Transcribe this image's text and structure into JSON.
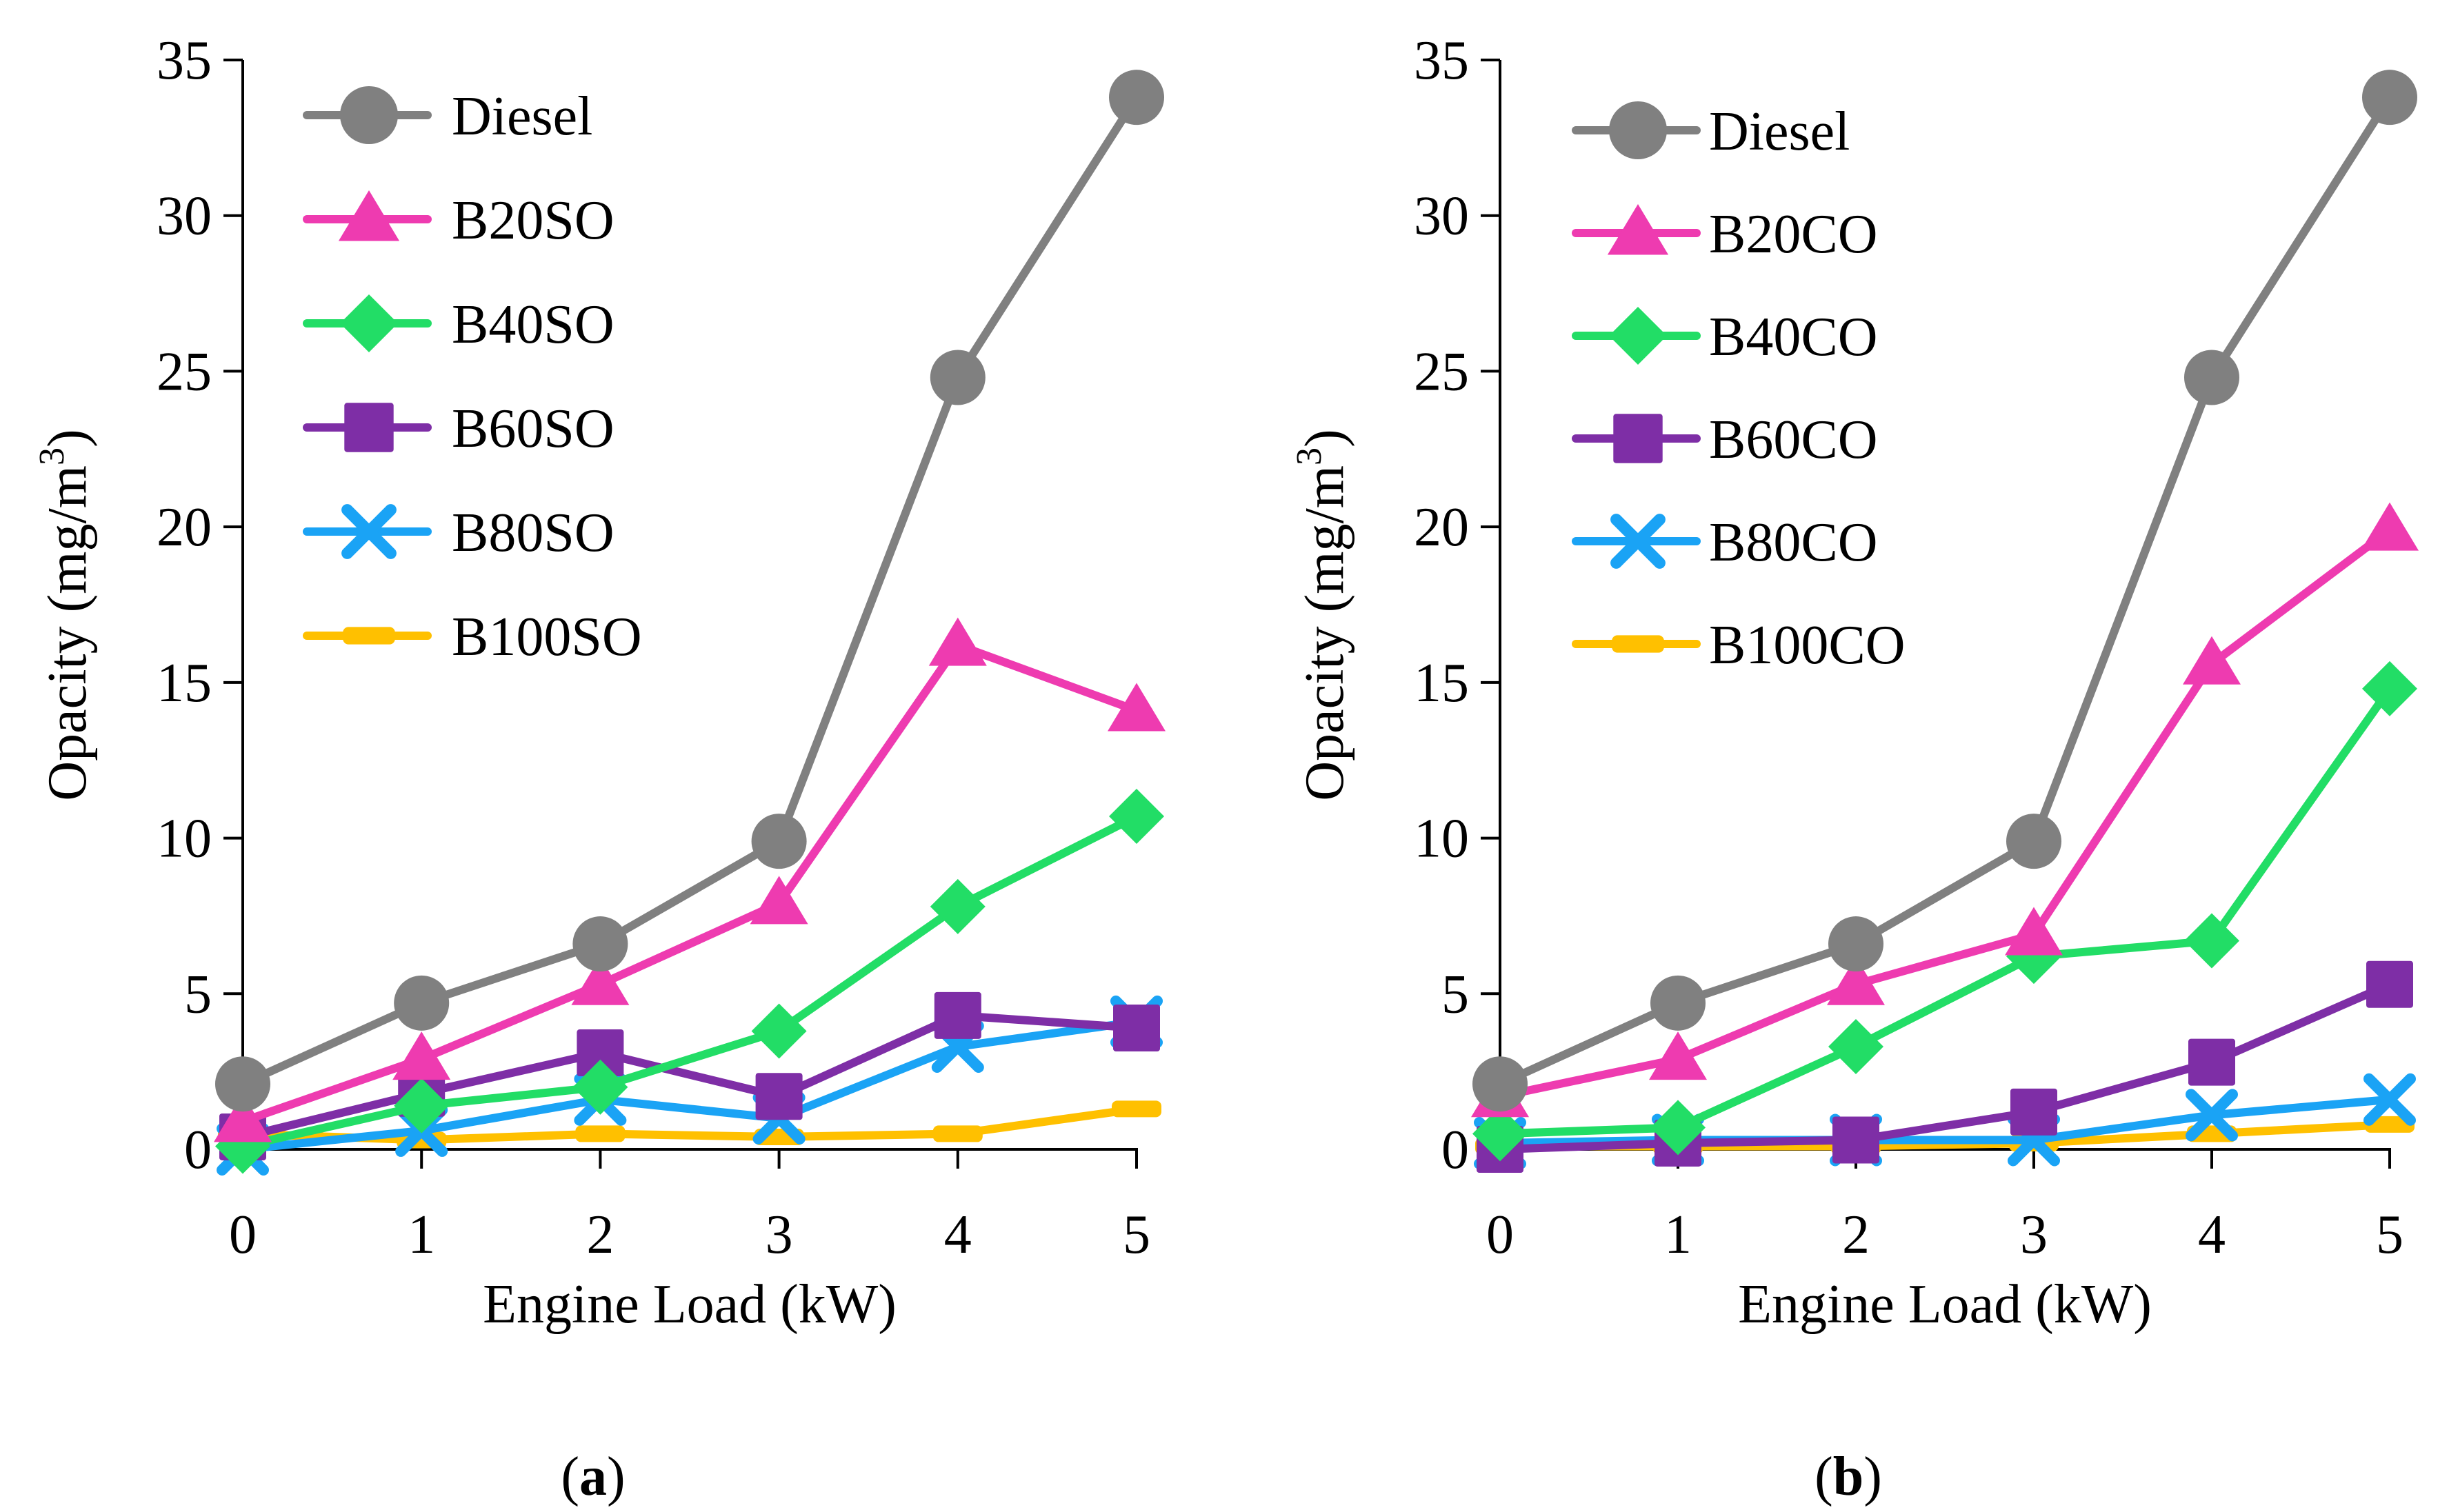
{
  "chart_data": [
    {
      "type": "line",
      "panel": "a",
      "caption": "a",
      "xlabel": "Engine Load (kW)",
      "ylabel": "Opacity (mg/m",
      "ylabel_superscript": "3",
      "ylabel_close": ")",
      "x": [
        0,
        1,
        2,
        3,
        4,
        5
      ],
      "xlim": [
        0,
        5
      ],
      "ylim": [
        0,
        35
      ],
      "yticks": [
        0,
        5,
        10,
        15,
        20,
        25,
        30,
        35
      ],
      "xticks": [
        0,
        1,
        2,
        3,
        4,
        5
      ],
      "legend_position": "top-left",
      "series": [
        {
          "name": "Diesel",
          "color": "#808080",
          "marker": "circle",
          "values": [
            2.1,
            4.7,
            6.6,
            9.9,
            24.8,
            33.8
          ]
        },
        {
          "name": "B20SO",
          "color": "#EE3BB0",
          "marker": "triangle",
          "values": [
            0.9,
            2.9,
            5.3,
            7.9,
            16.2,
            14.1
          ]
        },
        {
          "name": "B40SO",
          "color": "#22DD66",
          "marker": "diamond",
          "values": [
            0.1,
            1.4,
            2.0,
            3.8,
            7.8,
            10.7
          ]
        },
        {
          "name": "B60SO",
          "color": "#7E2EA6",
          "marker": "square",
          "values": [
            0.4,
            1.8,
            3.1,
            1.7,
            4.3,
            3.9
          ]
        },
        {
          "name": "B80SO",
          "color": "#1AA3F5",
          "marker": "cross",
          "values": [
            0.0,
            0.6,
            1.6,
            1.0,
            3.3,
            4.1
          ]
        },
        {
          "name": "B100SO",
          "color": "#FFC000",
          "marker": "dash",
          "values": [
            0.5,
            0.3,
            0.5,
            0.4,
            0.5,
            1.3
          ]
        }
      ]
    },
    {
      "type": "line",
      "panel": "b",
      "caption": "b",
      "xlabel": "Engine Load (kW)",
      "ylabel": "Opacity (mg/m",
      "ylabel_superscript": "3",
      "ylabel_close": ")",
      "x": [
        0,
        1,
        2,
        3,
        4,
        5
      ],
      "xlim": [
        0,
        5
      ],
      "ylim": [
        0,
        35
      ],
      "yticks": [
        0,
        5,
        10,
        15,
        20,
        25,
        30,
        35
      ],
      "xticks": [
        0,
        1,
        2,
        3,
        4,
        5
      ],
      "legend_position": "top-left",
      "series": [
        {
          "name": "Diesel",
          "color": "#808080",
          "marker": "circle",
          "values": [
            2.1,
            4.7,
            6.6,
            9.9,
            24.8,
            33.8
          ]
        },
        {
          "name": "B20CO",
          "color": "#EE3BB0",
          "marker": "triangle",
          "values": [
            1.7,
            2.9,
            5.3,
            6.9,
            15.6,
            19.9
          ]
        },
        {
          "name": "B40CO",
          "color": "#22DD66",
          "marker": "diamond",
          "values": [
            0.5,
            0.7,
            3.3,
            6.2,
            6.7,
            14.8
          ]
        },
        {
          "name": "B60CO",
          "color": "#7E2EA6",
          "marker": "square",
          "values": [
            0.0,
            0.2,
            0.3,
            1.2,
            2.8,
            5.3
          ]
        },
        {
          "name": "B80CO",
          "color": "#1AA3F5",
          "marker": "cross",
          "values": [
            0.2,
            0.3,
            0.3,
            0.3,
            1.1,
            1.6
          ]
        },
        {
          "name": "B100CO",
          "color": "#FFC000",
          "marker": "dash",
          "values": [
            0.1,
            0.1,
            0.1,
            0.2,
            0.5,
            0.8
          ]
        }
      ]
    }
  ]
}
